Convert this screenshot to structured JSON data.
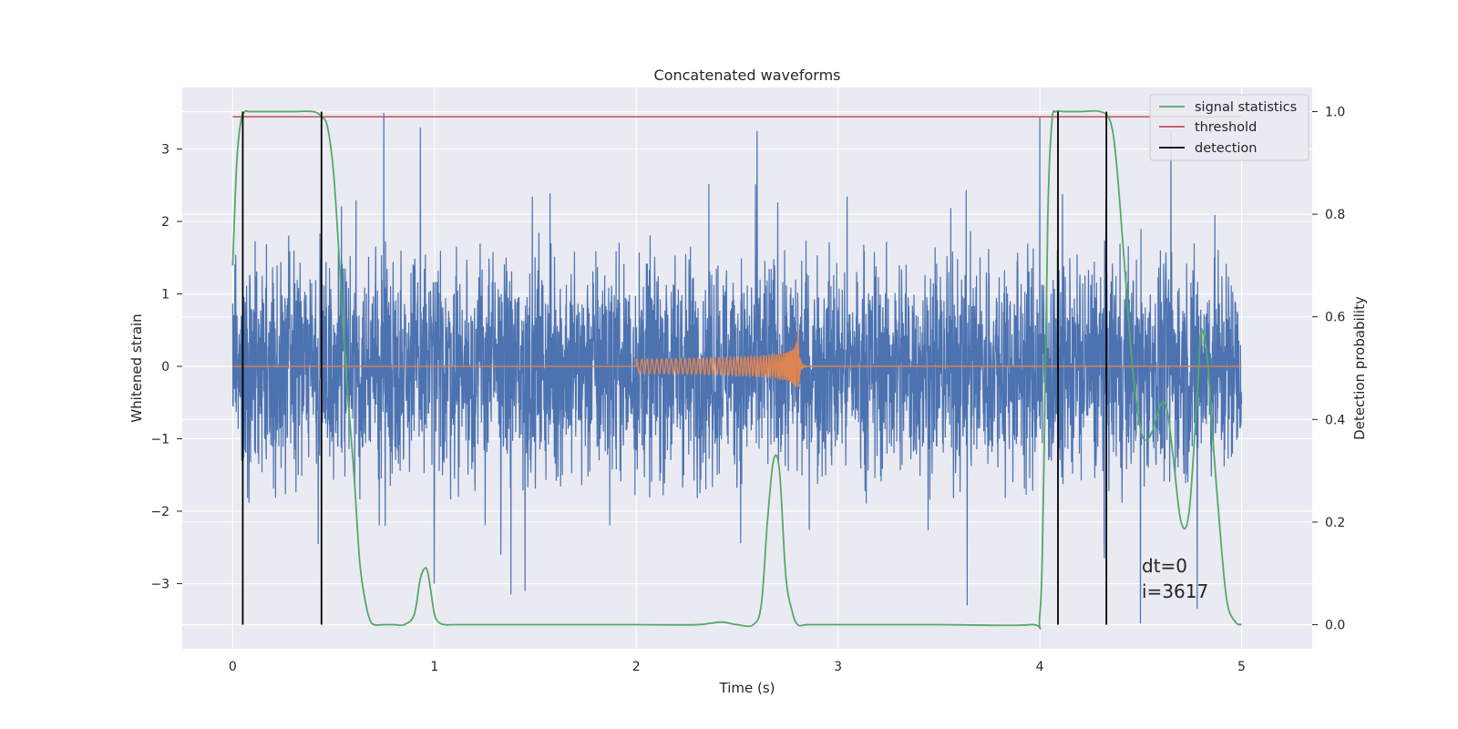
{
  "chart_data": {
    "type": "line",
    "title": "Concatenated waveforms",
    "xlabel": "Time (s)",
    "ylabel": "Whitened strain",
    "y2label": "Detection probability",
    "xlim": [
      -0.25,
      5.35
    ],
    "ylim": [
      -3.9,
      3.85
    ],
    "y2lim": [
      -0.047,
      1.047
    ],
    "xticks": [
      "0",
      "1",
      "2",
      "3",
      "4",
      "5"
    ],
    "yticks": [
      "3",
      "2",
      "1",
      "0",
      "−1",
      "−2",
      "−3"
    ],
    "y2ticks": [
      "1.0",
      "0.8",
      "0.6",
      "0.4",
      "0.2",
      "0.0"
    ],
    "grid": true,
    "legend_position": "top-right",
    "colors": {
      "background": "#EAEAF2",
      "strain": "#4C72B0",
      "template": "#DD8452",
      "statistics": "#55A868",
      "threshold": "#C44E52",
      "detection": "#000000",
      "grid": "#FFFFFF"
    },
    "legend": [
      "signal statistics",
      "threshold",
      "detection"
    ],
    "threshold": 0.99,
    "detections": [
      0.05,
      0.44,
      4.09,
      4.33
    ],
    "strain_envelope": {
      "x": [
        0.0,
        0.05,
        0.1,
        0.2,
        0.4,
        0.6,
        0.8,
        1.0,
        1.2,
        1.4,
        1.6,
        1.8,
        2.0,
        2.2,
        2.4,
        2.6,
        2.8,
        3.0,
        3.2,
        3.4,
        3.6,
        3.8,
        4.0,
        4.2,
        4.4,
        4.6,
        4.8,
        5.0
      ],
      "upper": [
        1.0,
        2.8,
        2.4,
        2.3,
        2.0,
        2.3,
        2.2,
        2.9,
        2.3,
        2.3,
        2.4,
        2.7,
        2.5,
        2.6,
        2.8,
        2.5,
        2.6,
        2.3,
        2.5,
        2.2,
        2.4,
        2.6,
        2.9,
        2.6,
        2.9,
        2.5,
        2.9,
        0.5
      ],
      "lower": [
        -0.5,
        -2.2,
        -2.1,
        -2.3,
        -2.6,
        -2.7,
        -2.6,
        -2.5,
        -2.6,
        -2.8,
        -2.8,
        -2.5,
        -2.4,
        -2.7,
        -2.5,
        -2.4,
        -2.2,
        -2.4,
        -2.6,
        -2.9,
        -2.4,
        -2.3,
        -2.2,
        -2.6,
        -2.7,
        -2.9,
        -2.6,
        -0.8
      ]
    },
    "strain_peaks": [
      {
        "x": 0.75,
        "y": 3.5
      },
      {
        "x": 0.93,
        "y": 3.3
      },
      {
        "x": 1.0,
        "y": -3.0
      },
      {
        "x": 1.38,
        "y": -3.15
      },
      {
        "x": 1.45,
        "y": -3.1
      },
      {
        "x": 2.6,
        "y": 3.25
      },
      {
        "x": 4.0,
        "y": 3.45
      },
      {
        "x": 4.32,
        "y": -2.65
      },
      {
        "x": 4.5,
        "y": -3.55
      },
      {
        "x": 4.65,
        "y": 3.25
      },
      {
        "x": 4.78,
        "y": -3.35
      },
      {
        "x": 3.64,
        "y": -3.3
      }
    ],
    "template_chirp": {
      "t_start": 2.0,
      "t_merger": 2.8,
      "amp_start": 0.1,
      "amp_peak": 0.5
    },
    "series": [
      {
        "name": "signal statistics",
        "x": [
          0.0,
          0.02,
          0.04,
          0.06,
          0.08,
          0.12,
          0.2,
          0.3,
          0.4,
          0.44,
          0.47,
          0.5,
          0.53,
          0.56,
          0.6,
          0.63,
          0.66,
          0.68,
          0.7,
          0.75,
          0.8,
          0.85,
          0.9,
          0.93,
          0.96,
          0.98,
          1.0,
          1.02,
          1.05,
          1.1,
          1.2,
          1.5,
          2.0,
          2.3,
          2.42,
          2.5,
          2.58,
          2.62,
          2.65,
          2.68,
          2.71,
          2.74,
          2.77,
          2.8,
          2.85,
          3.0,
          3.5,
          3.95,
          4.0,
          4.02,
          4.04,
          4.06,
          4.08,
          4.12,
          4.2,
          4.3,
          4.35,
          4.38,
          4.42,
          4.46,
          4.5,
          4.53,
          4.56,
          4.6,
          4.63,
          4.66,
          4.7,
          4.74,
          4.78,
          4.8,
          4.83,
          4.86,
          4.9,
          4.93,
          4.97,
          5.0
        ],
        "y": [
          0.7,
          0.9,
          0.98,
          1.0,
          1.0,
          1.0,
          1.0,
          1.0,
          1.0,
          0.99,
          0.97,
          0.88,
          0.7,
          0.5,
          0.3,
          0.12,
          0.04,
          0.01,
          0.0,
          0.0,
          0.0,
          0.0,
          0.02,
          0.09,
          0.11,
          0.07,
          0.02,
          0.005,
          0.0,
          0.0,
          0.0,
          0.0,
          0.0,
          0.0,
          0.005,
          0.0,
          0.0,
          0.04,
          0.2,
          0.32,
          0.3,
          0.1,
          0.03,
          0.0,
          0.0,
          0.0,
          0.0,
          0.0,
          0.02,
          0.3,
          0.8,
          0.98,
          1.0,
          1.0,
          1.0,
          1.0,
          0.98,
          0.9,
          0.7,
          0.5,
          0.38,
          0.36,
          0.38,
          0.43,
          0.42,
          0.33,
          0.2,
          0.22,
          0.45,
          0.57,
          0.52,
          0.35,
          0.15,
          0.04,
          0.005,
          0.0
        ]
      },
      {
        "name": "threshold",
        "x": [
          0.0,
          5.0
        ],
        "y": [
          0.99,
          0.99
        ]
      },
      {
        "name": "detection",
        "x": [
          0.05,
          0.44,
          4.09,
          4.33
        ],
        "y": [
          1.0,
          1.0,
          1.0,
          1.0
        ]
      }
    ],
    "annotations": [
      "dt=0",
      "i=3617"
    ]
  }
}
